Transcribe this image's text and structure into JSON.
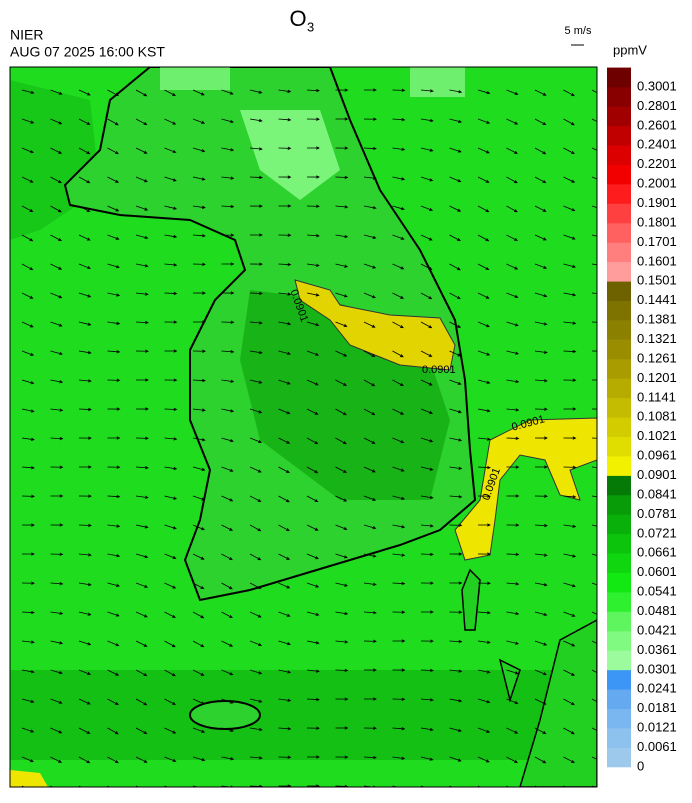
{
  "header": {
    "title": {
      "text": "O",
      "subscript": "3"
    },
    "agency": "NIER",
    "datetime": "AUG 07 2025 16:00 KST",
    "wind_reference": "5 m/s"
  },
  "map": {
    "contour_labels": [
      "0.0901",
      "0.0901",
      "0.0901",
      "0.0901"
    ]
  },
  "legend": {
    "unit": "ppmV",
    "levels": [
      0,
      0.0061,
      0.0121,
      0.0181,
      0.0241,
      0.0301,
      0.0361,
      0.0421,
      0.0481,
      0.0541,
      0.0601,
      0.0661,
      0.0721,
      0.0781,
      0.0841,
      0.0901,
      0.0961,
      0.1021,
      0.1081,
      0.1141,
      0.1201,
      0.1261,
      0.1321,
      0.1381,
      0.1441,
      0.1501,
      0.1601,
      0.1701,
      0.1801,
      0.1901,
      0.2001,
      0.2201,
      0.2401,
      0.2601,
      0.2801,
      0.3001
    ],
    "colors": [
      "#9dc9ec",
      "#8dc1ee",
      "#7ab6ef",
      "#65aaf1",
      "#3c96f5",
      "#9cfb9c",
      "#80fa80",
      "#5ef55e",
      "#2ef02e",
      "#12e812",
      "#0fd60f",
      "#0cc40c",
      "#0ab00a",
      "#089c08",
      "#067a06",
      "#f2f200",
      "#e0de00",
      "#d2cc00",
      "#c4bc00",
      "#b6ac00",
      "#a89c00",
      "#9a8e00",
      "#8c8000",
      "#7e7200",
      "#6e6200",
      "#ff9c9c",
      "#ff7f7f",
      "#ff6060",
      "#ff4040",
      "#ff1c1c",
      "#f20000",
      "#dc0000",
      "#c00000",
      "#a00000",
      "#880000",
      "#6e0000"
    ]
  }
}
